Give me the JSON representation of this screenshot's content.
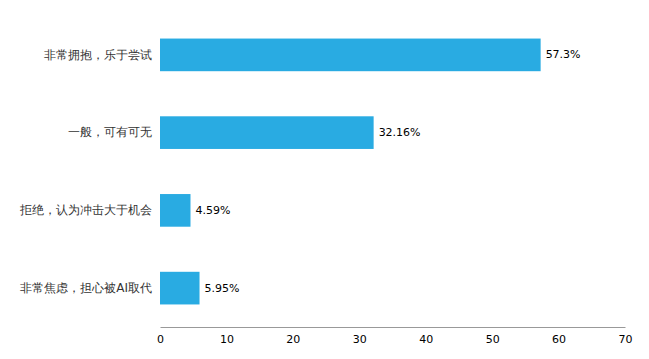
{
  "chart_data": {
    "type": "bar",
    "orientation": "horizontal",
    "categories": [
      "非常焦虑，担心被AI取代",
      "拒绝，认为冲击大于机会",
      "一般，可有可无",
      "非常拥抱，乐于尝试"
    ],
    "values": [
      5.95,
      4.59,
      32.16,
      57.3
    ],
    "value_labels": [
      "5.95%",
      "4.59%",
      "32.16%",
      "57.3%"
    ],
    "data_labels": true,
    "color": "#29ABE2",
    "xlim": [
      0,
      70
    ],
    "xticks": [
      0,
      10,
      20,
      30,
      40,
      50,
      60,
      70
    ],
    "grid": false
  }
}
